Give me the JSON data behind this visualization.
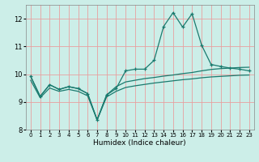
{
  "title": "",
  "xlabel": "Humidex (Indice chaleur)",
  "background_color": "#cceee8",
  "line_color": "#1a7a6e",
  "grid_color": "#e8a0a0",
  "xlim": [
    -0.5,
    23.5
  ],
  "ylim": [
    8.0,
    12.5
  ],
  "yticks": [
    8,
    9,
    10,
    11,
    12
  ],
  "xticks": [
    0,
    1,
    2,
    3,
    4,
    5,
    6,
    7,
    8,
    9,
    10,
    11,
    12,
    13,
    14,
    15,
    16,
    17,
    18,
    19,
    20,
    21,
    22,
    23
  ],
  "line1_x": [
    0,
    1,
    2,
    3,
    4,
    5,
    6,
    7,
    8,
    9,
    10,
    11,
    12,
    13,
    14,
    15,
    16,
    17,
    18,
    19,
    20,
    21,
    22,
    23
  ],
  "line1_y": [
    9.92,
    9.2,
    9.62,
    9.45,
    9.55,
    9.48,
    9.3,
    8.35,
    9.25,
    9.48,
    10.12,
    10.18,
    10.18,
    10.5,
    11.72,
    12.22,
    11.7,
    12.18,
    11.05,
    10.35,
    10.28,
    10.22,
    10.18,
    10.12
  ],
  "line2_x": [
    0,
    1,
    2,
    3,
    4,
    5,
    6,
    7,
    8,
    9,
    10,
    11,
    12,
    13,
    14,
    15,
    16,
    17,
    18,
    19,
    20,
    21,
    22,
    23
  ],
  "line2_y": [
    9.92,
    9.2,
    9.62,
    9.45,
    9.55,
    9.48,
    9.3,
    8.35,
    9.25,
    9.55,
    9.72,
    9.78,
    9.84,
    9.88,
    9.93,
    9.97,
    10.02,
    10.06,
    10.12,
    10.17,
    10.2,
    10.22,
    10.24,
    10.25
  ],
  "line3_x": [
    0,
    1,
    2,
    3,
    4,
    5,
    6,
    7,
    8,
    9,
    10,
    11,
    12,
    13,
    14,
    15,
    16,
    17,
    18,
    19,
    20,
    21,
    22,
    23
  ],
  "line3_y": [
    9.78,
    9.15,
    9.5,
    9.38,
    9.45,
    9.38,
    9.22,
    8.35,
    9.18,
    9.38,
    9.52,
    9.58,
    9.63,
    9.68,
    9.72,
    9.76,
    9.8,
    9.83,
    9.87,
    9.9,
    9.92,
    9.94,
    9.96,
    9.97
  ]
}
